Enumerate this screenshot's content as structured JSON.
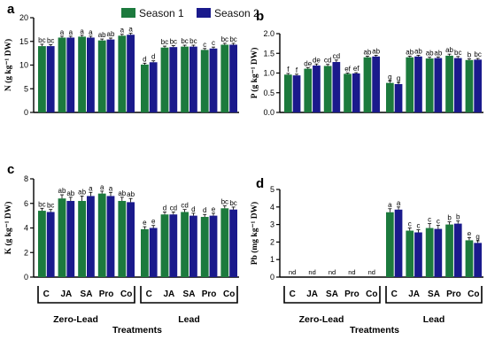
{
  "legend": [
    {
      "label": "Season 1",
      "color": "#1c7a3d"
    },
    {
      "label": "Season 2",
      "color": "#1a1a8c"
    }
  ],
  "treatments": [
    "C",
    "JA",
    "SA",
    "Pro",
    "Co",
    "C",
    "JA",
    "SA",
    "Pro",
    "Co"
  ],
  "groups": [
    "Zero-Lead",
    "Lead"
  ],
  "xlabel": "Treatments",
  "nd_label": "nd",
  "chart_data": [
    {
      "panel": "a",
      "type": "bar",
      "ylabel": "N (g kg⁻¹ DW)",
      "ylim": [
        0,
        20
      ],
      "yticks": [
        0,
        5,
        10,
        15,
        20
      ],
      "series": [
        {
          "name": "Season 1",
          "values": [
            14.0,
            15.8,
            16.0,
            15.2,
            16.2,
            10.1,
            13.7,
            13.9,
            13.2,
            14.3
          ],
          "errors": [
            0.4,
            0.3,
            0.3,
            0.3,
            0.3,
            0.3,
            0.3,
            0.3,
            0.3,
            0.3
          ],
          "letters": [
            "bc",
            "a",
            "a",
            "ab",
            "a",
            "d",
            "bc",
            "bc",
            "c",
            "bc"
          ]
        },
        {
          "name": "Season 2",
          "values": [
            14.0,
            15.8,
            15.8,
            15.4,
            16.4,
            10.6,
            13.8,
            13.9,
            13.5,
            14.3
          ],
          "errors": [
            0.3,
            0.3,
            0.3,
            0.3,
            0.3,
            0.3,
            0.3,
            0.3,
            0.3,
            0.3
          ],
          "letters": [
            "bc",
            "a",
            "a",
            "ab",
            "a",
            "d",
            "bc",
            "bc",
            "c",
            "bc"
          ]
        }
      ]
    },
    {
      "panel": "b",
      "type": "bar",
      "ylabel": "P (g kg⁻¹ DW)",
      "ylim": [
        0,
        2.0
      ],
      "yticks": [
        0.0,
        0.5,
        1.0,
        1.5,
        2.0
      ],
      "series": [
        {
          "name": "Season 1",
          "values": [
            0.96,
            1.11,
            1.18,
            0.98,
            1.4,
            0.75,
            1.4,
            1.37,
            1.44,
            1.33
          ],
          "errors": [
            0.03,
            0.03,
            0.04,
            0.02,
            0.03,
            0.05,
            0.03,
            0.03,
            0.04,
            0.03
          ],
          "letters": [
            "f",
            "de",
            "cd",
            "ef",
            "ab",
            "g",
            "ab",
            "ab",
            "ab",
            "b"
          ]
        },
        {
          "name": "Season 2",
          "values": [
            0.94,
            1.19,
            1.28,
            0.99,
            1.42,
            0.72,
            1.42,
            1.38,
            1.38,
            1.34
          ],
          "errors": [
            0.03,
            0.04,
            0.05,
            0.02,
            0.03,
            0.04,
            0.03,
            0.03,
            0.04,
            0.03
          ],
          "letters": [
            "f",
            "de",
            "cd",
            "ef",
            "ab",
            "g",
            "ab",
            "ab",
            "bc",
            "bc"
          ]
        }
      ]
    },
    {
      "panel": "c",
      "type": "bar",
      "ylabel": "K (g kg⁻¹ DW)",
      "ylim": [
        0,
        8
      ],
      "yticks": [
        0,
        2,
        4,
        6,
        8
      ],
      "series": [
        {
          "name": "Season 1",
          "values": [
            5.4,
            6.4,
            6.2,
            6.8,
            6.2,
            3.9,
            5.1,
            5.3,
            4.9,
            5.6
          ],
          "errors": [
            0.2,
            0.3,
            0.4,
            0.2,
            0.3,
            0.2,
            0.2,
            0.2,
            0.2,
            0.2
          ],
          "letters": [
            "bc",
            "ab",
            "ab",
            "a",
            "ab",
            "e",
            "d",
            "cd",
            "d",
            "bc"
          ]
        },
        {
          "name": "Season 2",
          "values": [
            5.3,
            6.2,
            6.6,
            6.6,
            6.1,
            4.0,
            5.1,
            5.0,
            5.0,
            5.5
          ],
          "errors": [
            0.2,
            0.3,
            0.3,
            0.3,
            0.3,
            0.2,
            0.2,
            0.2,
            0.2,
            0.2
          ],
          "letters": [
            "bc",
            "ab",
            "a",
            "a",
            "ab",
            "e",
            "cd",
            "d",
            "e",
            "bc"
          ]
        }
      ]
    },
    {
      "panel": "d",
      "type": "bar",
      "ylabel": "Pb (mg kg⁻¹ DW)",
      "ylim": [
        0,
        5
      ],
      "yticks": [
        0,
        1,
        2,
        3,
        4,
        5
      ],
      "series": [
        {
          "name": "Season 1",
          "values": [
            0,
            0,
            0,
            0,
            0,
            3.7,
            2.65,
            2.8,
            3.0,
            2.1
          ],
          "errors": [
            0,
            0,
            0,
            0,
            0,
            0.2,
            0.15,
            0.25,
            0.15,
            0.15
          ],
          "letters": [
            "",
            "",
            "",
            "",
            "",
            "a",
            "c",
            "c",
            "b",
            "e"
          ]
        },
        {
          "name": "Season 2",
          "values": [
            0,
            0,
            0,
            0,
            0,
            3.85,
            2.55,
            2.75,
            3.05,
            1.95
          ],
          "errors": [
            0,
            0,
            0,
            0,
            0,
            0.15,
            0.15,
            0.2,
            0.15,
            0.12
          ],
          "letters": [
            "",
            "",
            "",
            "",
            "",
            "a",
            "c",
            "c",
            "b",
            "g"
          ]
        }
      ]
    }
  ]
}
